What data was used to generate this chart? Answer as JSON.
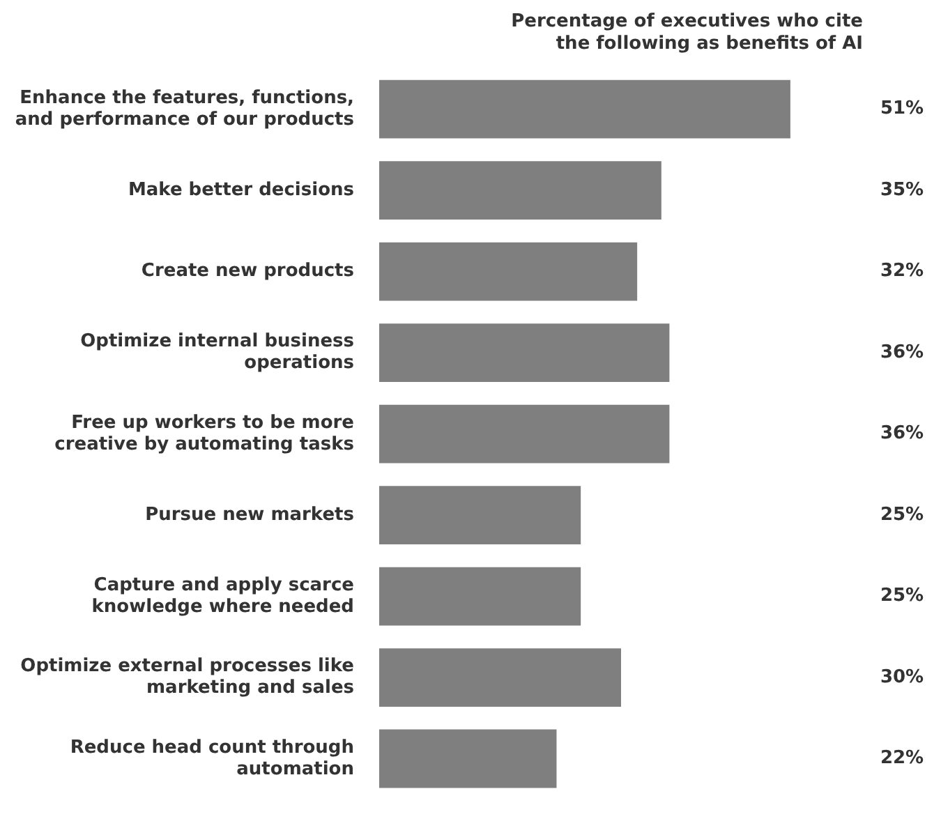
{
  "chart_data": {
    "type": "bar",
    "orientation": "horizontal",
    "title": "Percentage of executives who cite the following as benefits of AI",
    "categories": [
      "Enhance the features, functions, and performance of our products",
      "Make better decisions",
      "Create new products",
      "Optimize internal business operations",
      "Free up workers to be more creative by automating tasks",
      "Pursue new markets",
      "Capture and apply scarce knowledge where needed",
      "Optimize external processes like marketing and sales",
      "Reduce head count through automation"
    ],
    "values": [
      51,
      35,
      32,
      36,
      36,
      25,
      25,
      30,
      22
    ],
    "value_labels": [
      "51%",
      "35%",
      "32%",
      "36%",
      "36%",
      "25%",
      "25%",
      "30%",
      "22%"
    ],
    "color": "#7f7f7f",
    "legend": false,
    "tick_labels": "y"
  }
}
